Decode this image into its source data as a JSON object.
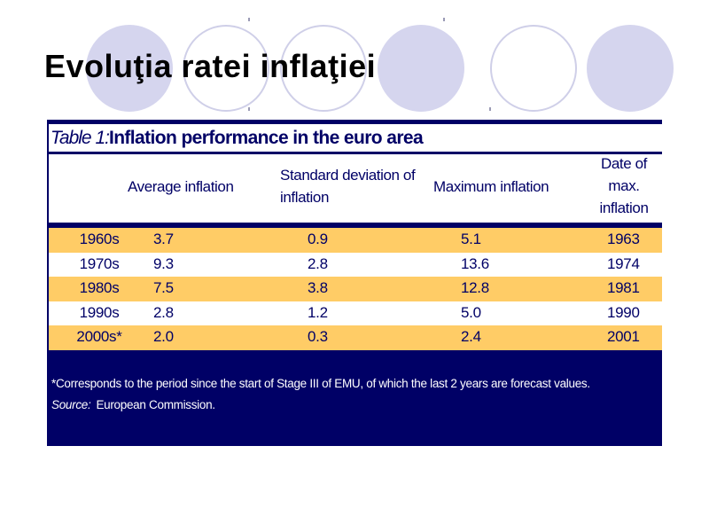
{
  "slide": {
    "title": "Evoluţia ratei inflaţiei"
  },
  "table": {
    "caption_label": "Table 1:",
    "caption_title": "Inflation performance in the euro area",
    "headers": {
      "average": "Average inflation",
      "std_line1": "Standard deviation of",
      "std_line2": "inflation",
      "maximum": "Maximum inflation",
      "date_line1": "Date of",
      "date_line2": "max.",
      "date_line3": "inflation"
    },
    "rows": [
      {
        "decade": "1960s",
        "average": "3.7",
        "std": "0.9",
        "max": "5.1",
        "date": "1963"
      },
      {
        "decade": "1970s",
        "average": "9.3",
        "std": "2.8",
        "max": "13.6",
        "date": "1974"
      },
      {
        "decade": "1980s",
        "average": "7.5",
        "std": "3.8",
        "max": "12.8",
        "date": "1981"
      },
      {
        "decade": "1990s",
        "average": "2.8",
        "std": "1.2",
        "max": "5.0",
        "date": "1990"
      },
      {
        "decade": "2000s*",
        "average": "2.0",
        "std": "0.3",
        "max": "2.4",
        "date": "2001"
      }
    ],
    "footnote": "*Corresponds to the period since the start of Stage III of EMU, of which the last 2 years are forecast values.",
    "source_label": "Source:",
    "source_text": "European Commission."
  },
  "colors": {
    "navy": "#000066",
    "row_shade": "#ffcc66",
    "circle_fill": "#d5d5ee"
  }
}
